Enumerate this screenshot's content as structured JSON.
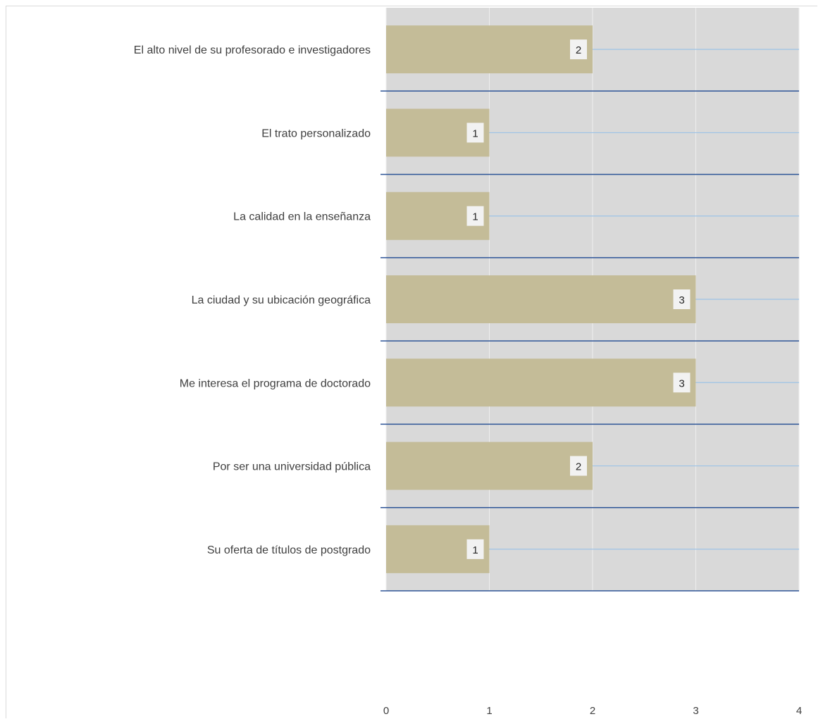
{
  "chart_data": {
    "type": "bar",
    "orientation": "horizontal",
    "categories": [
      "El alto nivel de su profesorado e investigadores",
      "El trato personalizado",
      "La calidad en la enseñanza",
      "La ciudad y su ubicación geográfica",
      "Me interesa el programa  de doctorado",
      "Por ser una universidad pública",
      "Su oferta de títulos de postgrado"
    ],
    "values": [
      2,
      1,
      1,
      3,
      3,
      2,
      1
    ],
    "xlim": [
      0,
      4
    ],
    "xticks": [
      "0",
      "1",
      "2",
      "3",
      "4"
    ],
    "data_labels": true,
    "grid": true,
    "colors": {
      "bar": "#c4bc98",
      "plot_background": "#d9d9d9",
      "category_divider": "#2e5597",
      "gridline": "#9dc3e6",
      "tick_text": "#404040"
    }
  }
}
